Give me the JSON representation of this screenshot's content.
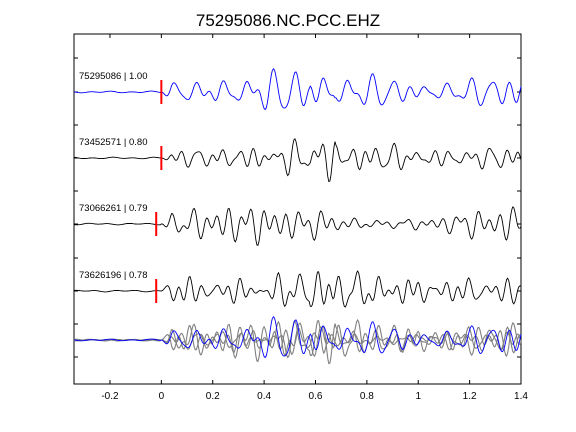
{
  "chart_data": {
    "type": "line",
    "title": "75295086.NC.PCC.EHZ",
    "xlabel": "",
    "ylabel": "",
    "xlim": [
      -0.34,
      1.4
    ],
    "x_ticks": [
      "-0.2",
      "0",
      "0.2",
      "0.4",
      "0.6",
      "0.8",
      "1",
      "1.2",
      "1.4"
    ],
    "x_tick_values": [
      -0.2,
      0,
      0.2,
      0.4,
      0.6,
      0.8,
      1.0,
      1.2,
      1.4
    ],
    "grid": false,
    "traces": [
      {
        "label": "75295086 | 1.00",
        "color": "#0000ff",
        "seed": 11,
        "amp": 1.0,
        "pick_x": 0.0
      },
      {
        "label": "73452571 | 0.80",
        "color": "#000000",
        "seed": 23,
        "amp": 0.95,
        "pick_x": 0.0
      },
      {
        "label": "73066261 | 0.79",
        "color": "#000000",
        "seed": 37,
        "amp": 0.95,
        "pick_x": -0.02
      },
      {
        "label": "73626196 | 0.78",
        "color": "#000000",
        "seed": 41,
        "amp": 0.95,
        "pick_x": -0.02
      }
    ],
    "stack": {
      "reference_color": "#0000ff",
      "overlay_color": "#808080"
    },
    "pick_color": "#ff0000"
  }
}
